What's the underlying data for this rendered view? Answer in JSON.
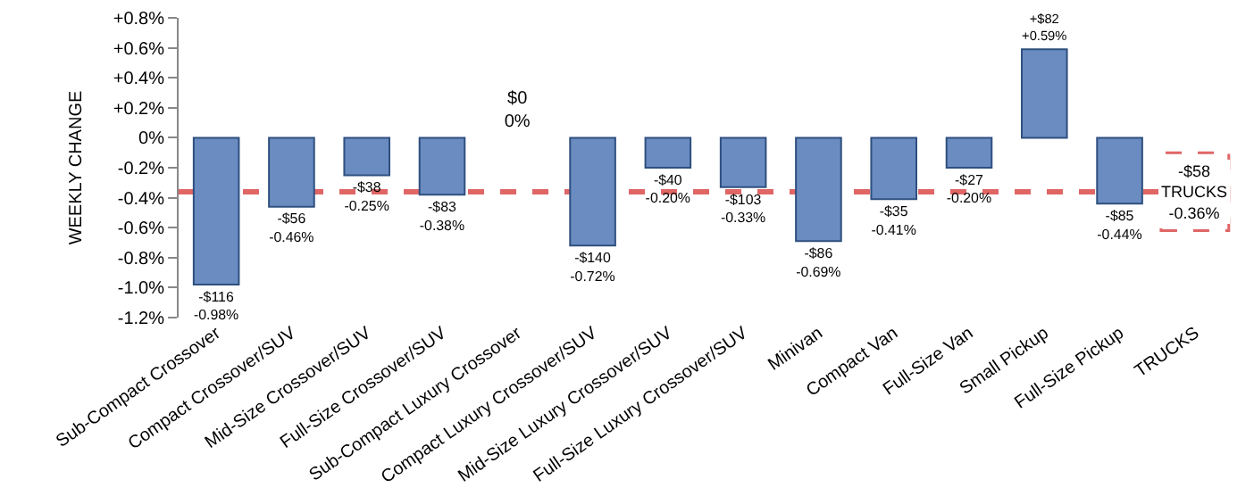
{
  "chart_data": {
    "type": "bar",
    "ylabel": "WEEKLY CHANGE",
    "categories": [
      "Sub-Compact Crossover",
      "Compact Crossover/SUV",
      "Mid-Size Crossover/SUV",
      "Full-Size Crossover/SUV",
      "Sub-Compact Luxury Crossover",
      "Compact Luxury Crossover/SUV",
      "Mid-Size Luxury Crossover/SUV",
      "Full-Size Luxury Crossover/SUV",
      "Minivan",
      "Compact Van",
      "Full-Size Van",
      "Small Pickup",
      "Full-Size Pickup",
      "TRUCKS"
    ],
    "values": [
      -0.98,
      -0.46,
      -0.25,
      -0.38,
      0,
      -0.72,
      -0.2,
      -0.33,
      -0.69,
      -0.41,
      -0.2,
      0.59,
      -0.44,
      null
    ],
    "value_labels": [
      "-$116\n-0.98%",
      "-$56\n-0.46%",
      "-$38\n-0.25%",
      "-$83\n-0.38%",
      "$0\n0%",
      "-$140\n-0.72%",
      "-$40\n-0.20%",
      "-$103\n-0.33%",
      "-$86\n-0.69%",
      "-$35\n-0.41%",
      "-$27\n-0.20%",
      "+$82\n+0.59%",
      "-$85\n-0.44%",
      null
    ],
    "color": "#6a8cc0",
    "ylim": [
      -1.2,
      0.8
    ],
    "yticks": [
      {
        "value": 0.8,
        "label": "+0.8%"
      },
      {
        "value": 0.6,
        "label": "+0.6%"
      },
      {
        "value": 0.4,
        "label": "+0.4%"
      },
      {
        "value": 0.2,
        "label": "+0.2%"
      },
      {
        "value": 0,
        "label": "0%"
      },
      {
        "value": -0.2,
        "label": "-0.2%"
      },
      {
        "value": -0.4,
        "label": "-0.4%"
      },
      {
        "value": -0.6,
        "label": "-0.6%"
      },
      {
        "value": -0.8,
        "label": "-0.8%"
      },
      {
        "value": -1.0,
        "label": "-1.0%"
      },
      {
        "value": -1.2,
        "label": "-1.2%"
      }
    ],
    "ref_lines": [
      {
        "axis": "y",
        "value": -0.36,
        "label": "-$58\nTRUCKS\n-0.36%",
        "color": "#e06666",
        "line_style": "dashed"
      }
    ],
    "legend": false
  }
}
